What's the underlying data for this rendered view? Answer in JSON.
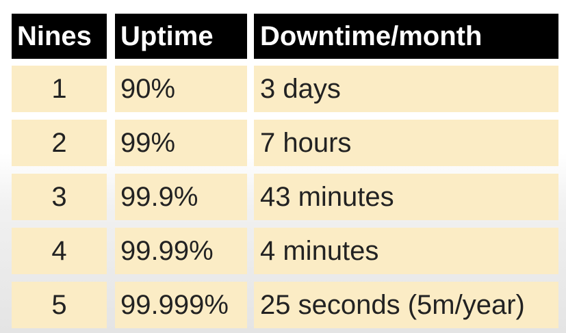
{
  "headers": [
    "Nines",
    "Uptime",
    "Downtime/month"
  ],
  "rows": [
    {
      "nines": "1",
      "uptime": "90%",
      "downtime": "3 days"
    },
    {
      "nines": "2",
      "uptime": "99%",
      "downtime": "7 hours"
    },
    {
      "nines": "3",
      "uptime": "99.9%",
      "downtime": "43 minutes"
    },
    {
      "nines": "4",
      "uptime": "99.99%",
      "downtime": "4 minutes"
    },
    {
      "nines": "5",
      "uptime": "99.999%",
      "downtime": "25 seconds (5m/year)"
    }
  ],
  "colors": {
    "header_background": "#000000",
    "header_text": "#ffffff",
    "cell_background": "#fbecc5",
    "cell_text": "#222222"
  }
}
